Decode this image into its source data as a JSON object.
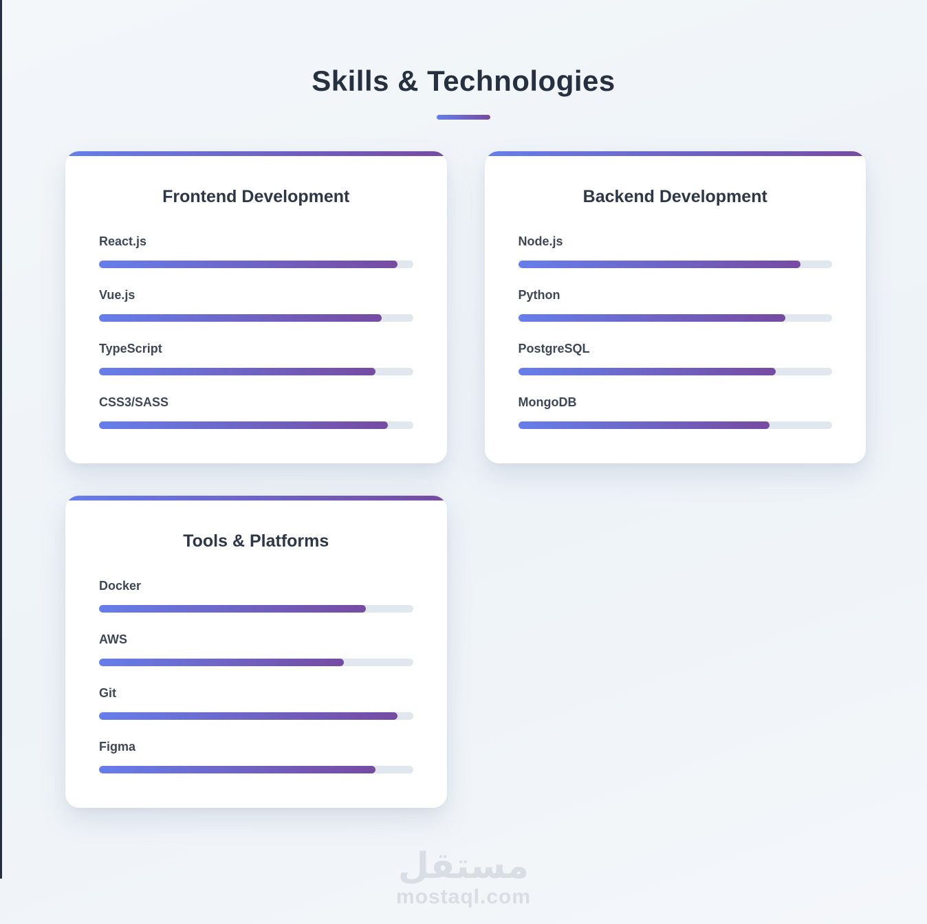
{
  "page": {
    "title": "Skills & Technologies"
  },
  "colors": {
    "background": "#f1f5f9",
    "card": "#ffffff",
    "title": "#27303f",
    "card_heading": "#2d3748",
    "skill_label": "#3d4757",
    "bar_track": "#e1e7ee",
    "gradient_start": "#667eea",
    "gradient_end": "#764ba2",
    "watermark": "#d9dee5",
    "edge_line": "#262d3f"
  },
  "cards": [
    {
      "title": "Frontend Development",
      "skills": [
        {
          "name": "React.js",
          "percent": 95
        },
        {
          "name": "Vue.js",
          "percent": 90
        },
        {
          "name": "TypeScript",
          "percent": 88
        },
        {
          "name": "CSS3/SASS",
          "percent": 92
        }
      ]
    },
    {
      "title": "Backend Development",
      "skills": [
        {
          "name": "Node.js",
          "percent": 90
        },
        {
          "name": "Python",
          "percent": 85
        },
        {
          "name": "PostgreSQL",
          "percent": 82
        },
        {
          "name": "MongoDB",
          "percent": 80
        }
      ]
    },
    {
      "title": "Tools & Platforms",
      "skills": [
        {
          "name": "Docker",
          "percent": 85
        },
        {
          "name": "AWS",
          "percent": 78
        },
        {
          "name": "Git",
          "percent": 95
        },
        {
          "name": "Figma",
          "percent": 88
        }
      ]
    }
  ],
  "watermark": {
    "logo": "مستقل",
    "domain": "mostaql.com"
  }
}
